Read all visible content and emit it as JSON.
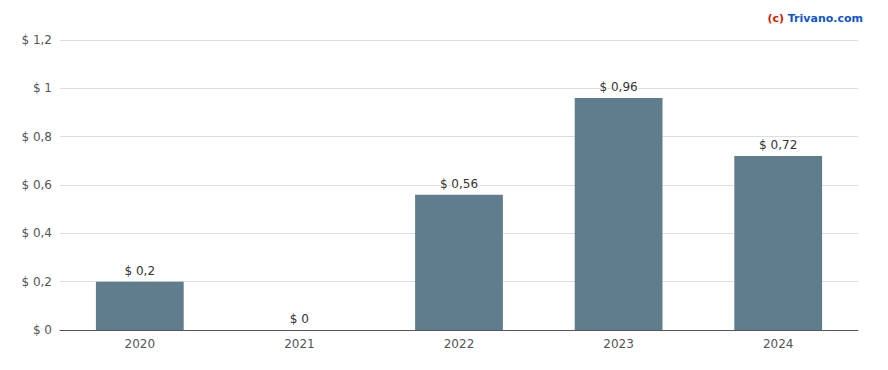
{
  "chart_data": {
    "type": "bar",
    "categories": [
      "2020",
      "2021",
      "2022",
      "2023",
      "2024"
    ],
    "values": [
      0.2,
      0.0,
      0.56,
      0.96,
      0.72
    ],
    "value_labels": [
      "$ 0,2",
      "$ 0",
      "$ 0,56",
      "$ 0,96",
      "$ 0,72"
    ],
    "data_labels": true,
    "color": "#5f7d8c",
    "ylim": [
      0,
      1.2
    ],
    "yticks": [
      {
        "value": 0,
        "label": "$ 0"
      },
      {
        "value": 0.2,
        "label": "$ 0,2"
      },
      {
        "value": 0.4,
        "label": "$ 0,4"
      },
      {
        "value": 0.6,
        "label": "$ 0,6"
      },
      {
        "value": 0.8,
        "label": "$ 0,8"
      },
      {
        "value": 1.0,
        "label": "$ 1"
      },
      {
        "value": 1.2,
        "label": "$ 1,2"
      }
    ],
    "grid": true,
    "annotations": [
      {
        "text": "(c)",
        "color": "#cc2200"
      },
      {
        "text": "Trivano.com",
        "color": "#1155cc"
      }
    ]
  }
}
